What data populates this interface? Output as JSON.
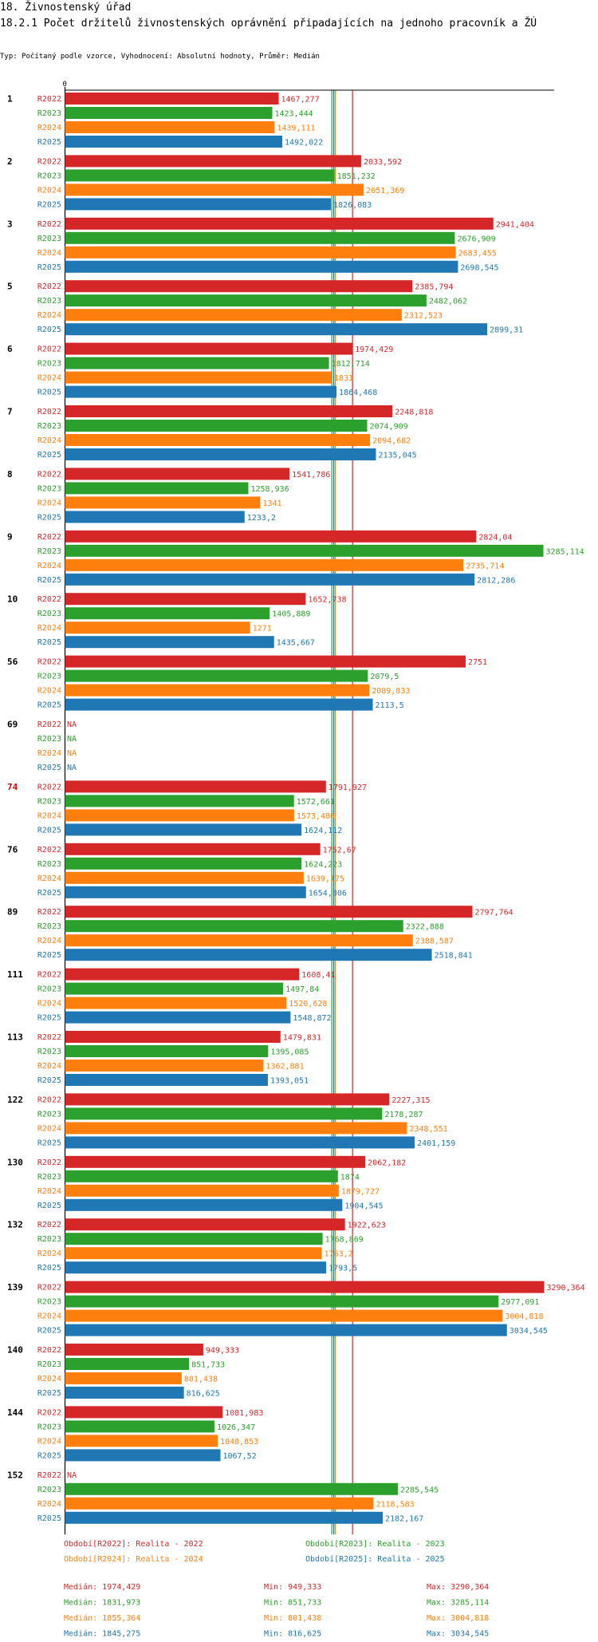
{
  "header": {
    "section_title": "18. Živnostenský úřad",
    "chart_title": "18.2.1 Počet držitelů živnostenských oprávnění připadajících na jednoho pracovník a ŽÚ",
    "subtitle": "Typ: Počítaný podle vzorce, Vyhodnocení: Absolutní hodnoty, Průměr: Medián"
  },
  "colors": {
    "R2022": "#d62728",
    "R2023": "#2ca02c",
    "R2024": "#ff7f0e",
    "R2025": "#1f77b4",
    "highlight_group": "#dd0000"
  },
  "chart_data": {
    "type": "bar",
    "orientation": "horizontal",
    "axis_zero_label": "0",
    "xlim": [
      0,
      3290.364
    ],
    "na_label": "NA",
    "highlighted_category": "74",
    "categories": [
      "1",
      "2",
      "3",
      "5",
      "6",
      "7",
      "8",
      "9",
      "10",
      "56",
      "69",
      "74",
      "76",
      "89",
      "111",
      "113",
      "122",
      "130",
      "132",
      "139",
      "140",
      "144",
      "152"
    ],
    "series": [
      {
        "name": "R2022",
        "labels": [
          "1467,277",
          "2033,592",
          "2941,404",
          "2385,794",
          "1974,429",
          "2248,818",
          "1541,786",
          "2824,04",
          "1652,738",
          "2751",
          "NA",
          "1791,927",
          "1752,67",
          "2797,764",
          "1608,41",
          "1479,831",
          "2227,315",
          "2062,182",
          "1922,623",
          "3290,364",
          "949,333",
          "1081,983",
          "NA"
        ]
      },
      {
        "name": "R2023",
        "labels": [
          "1423,444",
          "1851,232",
          "2676,909",
          "2482,062",
          "1812,714",
          "2074,909",
          "1258,936",
          "3285,114",
          "1405,889",
          "2079,5",
          "NA",
          "1572,661",
          "1624,223",
          "2322,888",
          "1497,84",
          "1395,085",
          "2178,287",
          "1874",
          "1768,869",
          "2977,091",
          "851,733",
          "1026,347",
          "2285,545"
        ]
      },
      {
        "name": "R2024",
        "labels": [
          "1439,111",
          "2051,369",
          "2683,455",
          "2312,523",
          "1831",
          "2094,682",
          "1341",
          "2735,714",
          "1271",
          "2089,833",
          "NA",
          "1573,486",
          "1639,175",
          "2388,587",
          "1520,628",
          "1362,881",
          "2348,551",
          "1879,727",
          "1763,2",
          "3004,818",
          "801,438",
          "1048,853",
          "2118,583"
        ]
      },
      {
        "name": "R2025",
        "labels": [
          "1492,022",
          "1826,083",
          "2698,545",
          "2899,31",
          "1864,468",
          "2135,045",
          "1233,2",
          "2812,286",
          "1435,667",
          "2113,5",
          "NA",
          "1624,112",
          "1654,806",
          "2518,841",
          "1548,872",
          "1393,051",
          "2401,159",
          "1904,545",
          "1793,5",
          "3034,545",
          "816,625",
          "1067,52",
          "2182,167"
        ]
      }
    ],
    "reference_lines": [
      {
        "series": "R2023",
        "stat": "median",
        "value": 1831.973
      },
      {
        "series": "R2024",
        "stat": "median",
        "value": 1855.364
      },
      {
        "series": "R2025",
        "stat": "median",
        "value": 1845.275
      },
      {
        "series": "R2022",
        "stat": "median",
        "value": 1974.429
      }
    ]
  },
  "legend": [
    {
      "series": "R2022",
      "text": "Období[R2022]: Realita - 2022"
    },
    {
      "series": "R2023",
      "text": "Období[R2023]: Realita - 2023"
    },
    {
      "series": "R2024",
      "text": "Období[R2024]: Realita - 2024"
    },
    {
      "series": "R2025",
      "text": "Období[R2025]: Realita - 2025"
    }
  ],
  "stats": [
    {
      "series": "R2022",
      "median": "Medián: 1974,429",
      "min": "Min: 949,333",
      "max": "Max: 3290,364"
    },
    {
      "series": "R2023",
      "median": "Medián: 1831,973",
      "min": "Min: 851,733",
      "max": "Max: 3285,114"
    },
    {
      "series": "R2024",
      "median": "Medián: 1855,364",
      "min": "Min: 801,438",
      "max": "Max: 3004,818"
    },
    {
      "series": "R2025",
      "median": "Medián: 1845,275",
      "min": "Min: 816,625",
      "max": "Max: 3034,545"
    }
  ]
}
